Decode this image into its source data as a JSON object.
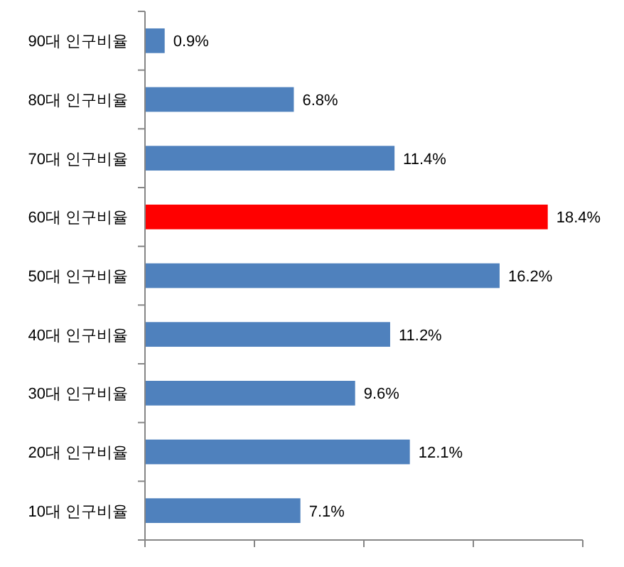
{
  "chart_data": {
    "type": "bar",
    "orientation": "horizontal",
    "categories": [
      "90대 인구비율",
      "80대 인구비율",
      "70대 인구비율",
      "60대 인구비율",
      "50대 인구비율",
      "40대 인구비율",
      "30대 인구비율",
      "20대 인구비율",
      "10대 인구비율"
    ],
    "values": [
      0.9,
      6.8,
      11.4,
      18.4,
      16.2,
      11.2,
      9.6,
      12.1,
      7.1
    ],
    "colors": [
      "#4f81bd",
      "#4f81bd",
      "#4f81bd",
      "#ff0000",
      "#4f81bd",
      "#4f81bd",
      "#4f81bd",
      "#4f81bd",
      "#4f81bd"
    ],
    "value_labels": [
      "0.9%",
      "6.8%",
      "11.4%",
      "18.4%",
      "16.2%",
      "11.2%",
      "9.6%",
      "12.1%",
      "7.1%"
    ],
    "xlim": [
      0,
      20
    ],
    "xticks": [
      {
        "value": 0,
        "label": null
      },
      {
        "value": 5,
        "label": null
      },
      {
        "value": 10,
        "label": null
      },
      {
        "value": 15,
        "label": null
      },
      {
        "value": 20,
        "label": null
      }
    ],
    "tick_labels": "y"
  }
}
